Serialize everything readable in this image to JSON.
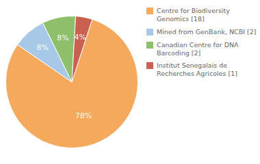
{
  "chart_data": {
    "type": "pie",
    "categories": [
      "Centre for Biodiversity\nGenomics [18]",
      "Mined from GenBank, NCBI [2]",
      "Canadian Centre for DNA\nBarcoding [2]",
      "Institut Senegalais de\nRecherches Agricoles [1]"
    ],
    "values": [
      78,
      8,
      8,
      4
    ],
    "value_labels": [
      "78%",
      "8%",
      "8%",
      "4%"
    ],
    "colors": [
      "#F5A95C",
      "#A8C8E8",
      "#8EC06C",
      "#C96050"
    ],
    "data_labels": true,
    "legend": "right"
  }
}
